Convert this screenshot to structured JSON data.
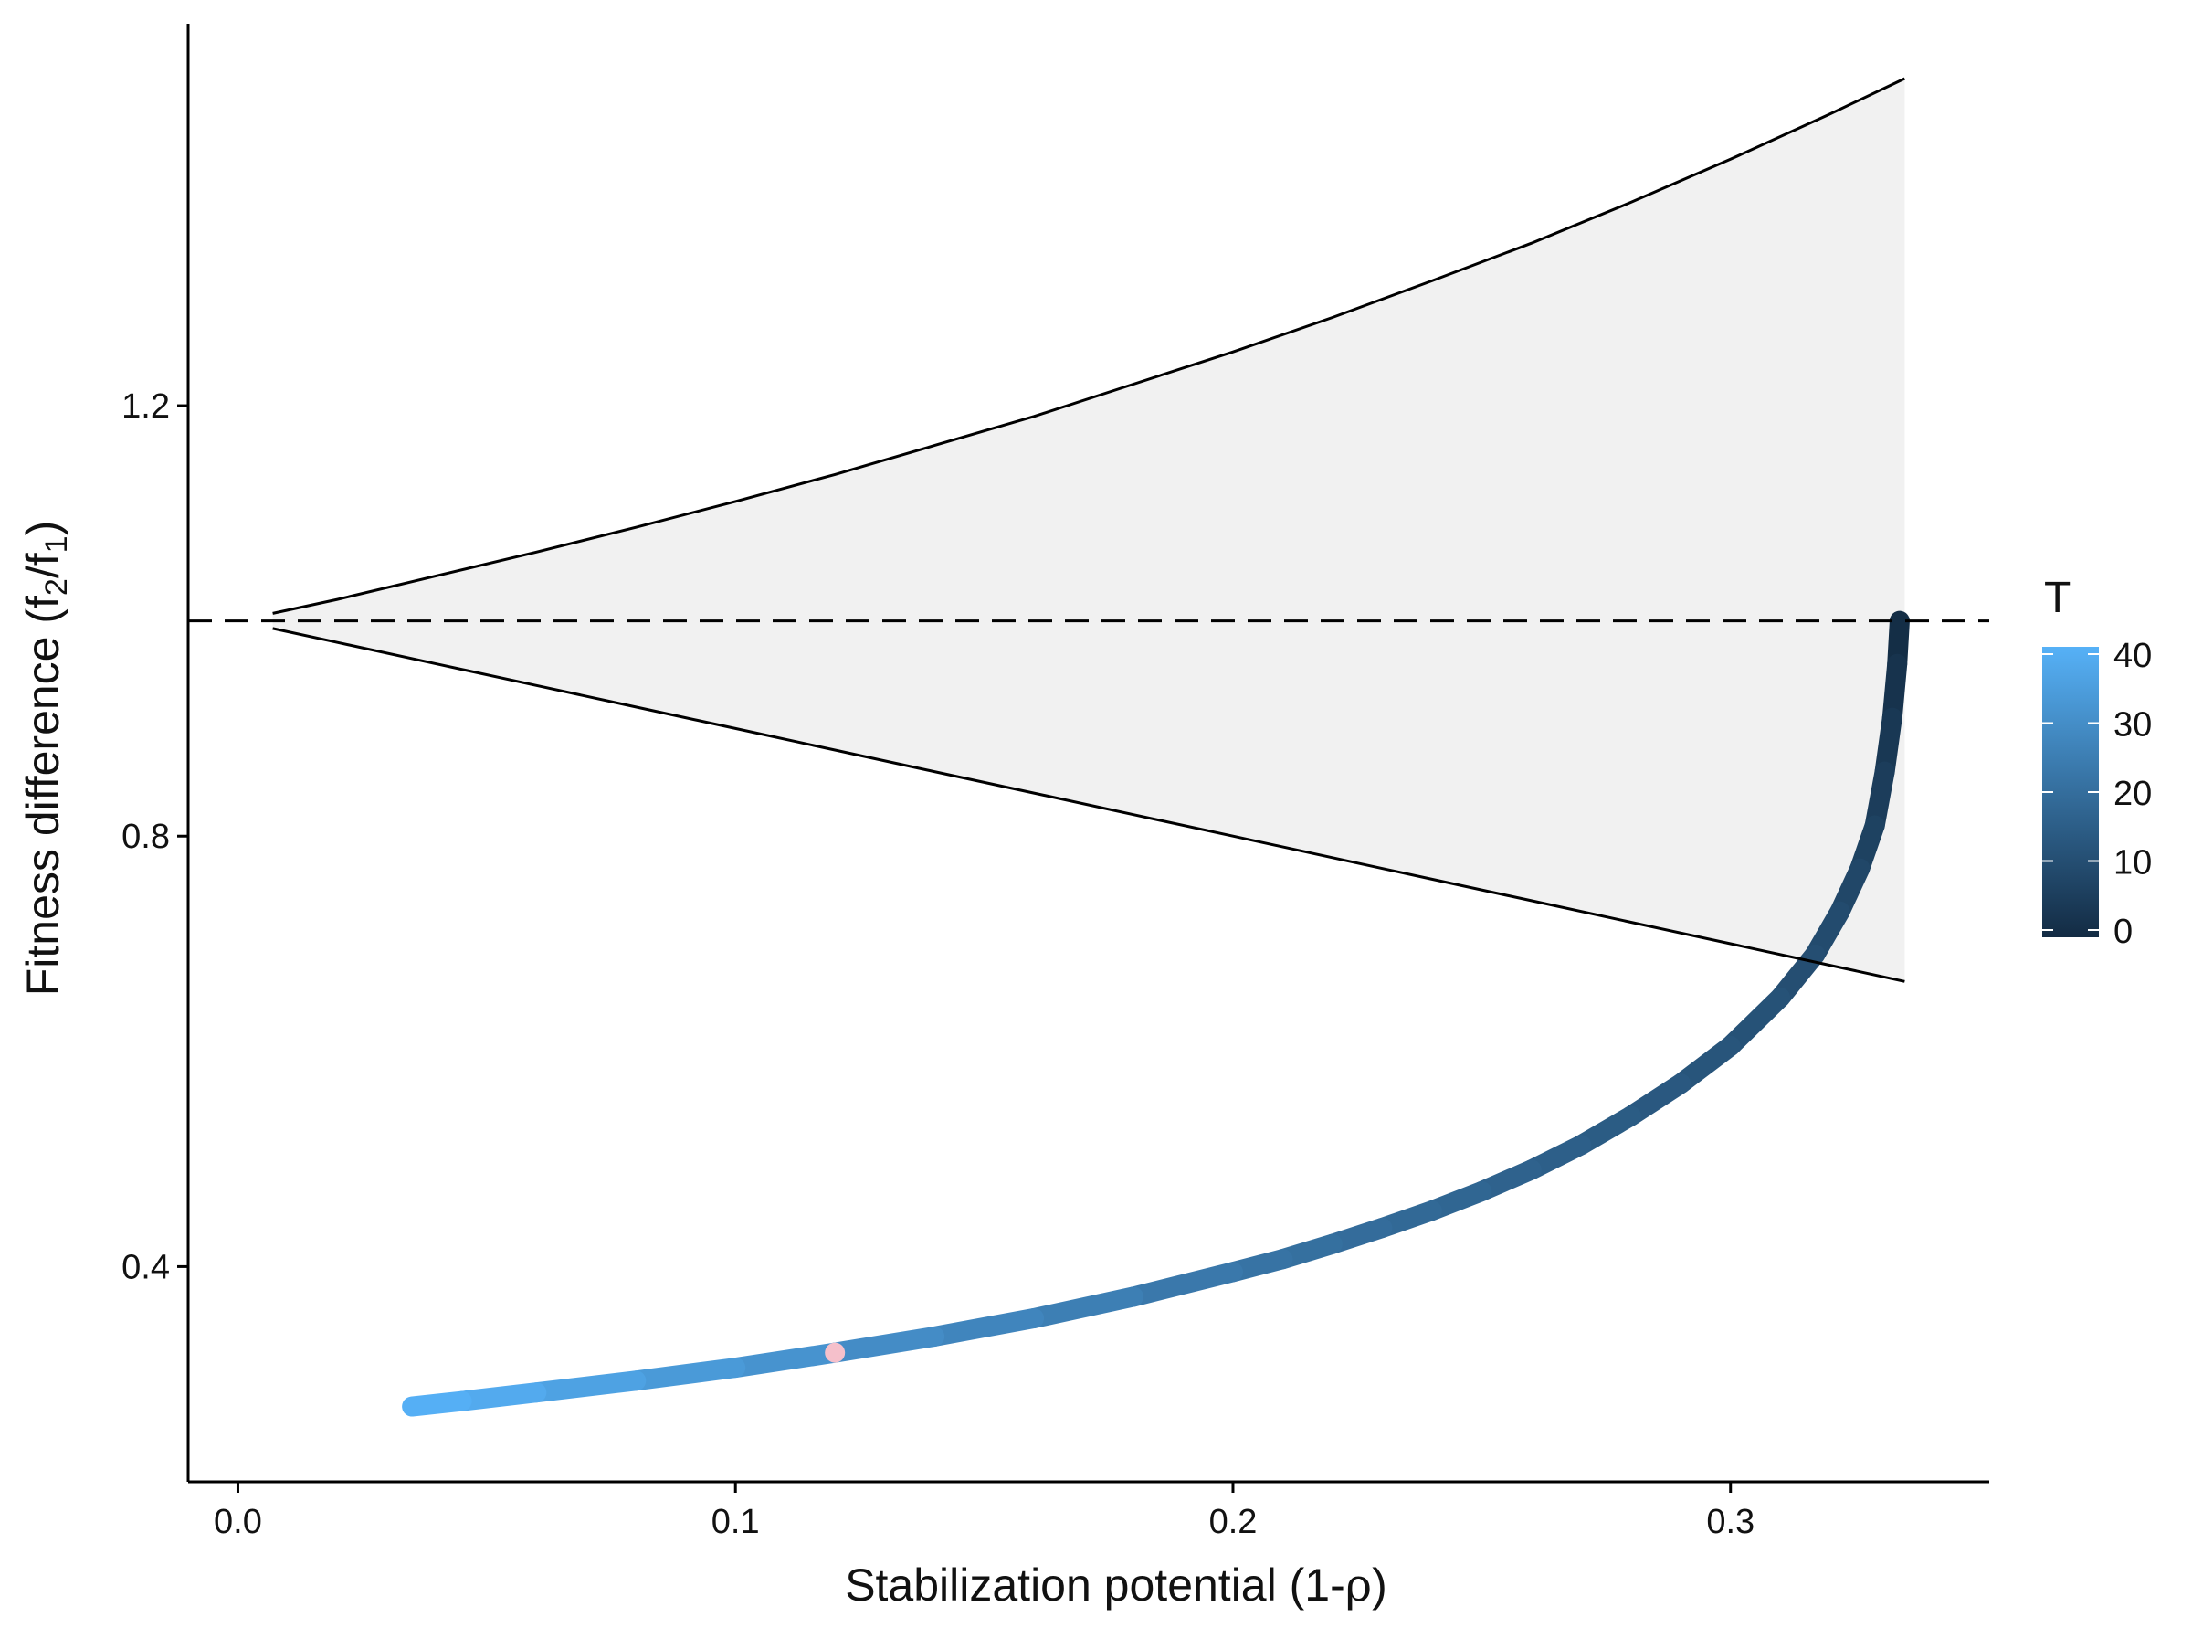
{
  "chart_data": {
    "type": "line",
    "xlabel": {
      "main": "Stabilization potential (1-",
      "symbol": "ρ",
      "close": ")"
    },
    "ylabel": {
      "main": "Fitness difference (f",
      "sub1": "2",
      "slash": "/f",
      "sub2": "1",
      "close": ")"
    },
    "xlim": [
      -0.01,
      0.352
    ],
    "ylim": [
      0.2,
      1.56
    ],
    "x_ticks": [
      {
        "value": 0.0,
        "label": "0.0"
      },
      {
        "value": 0.1,
        "label": "0.1"
      },
      {
        "value": 0.2,
        "label": "0.2"
      },
      {
        "value": 0.3,
        "label": "0.3"
      }
    ],
    "y_ticks": [
      {
        "value": 0.4,
        "label": "0.4"
      },
      {
        "value": 0.8,
        "label": "0.8"
      },
      {
        "value": 1.2,
        "label": "1.2"
      }
    ],
    "grid": false,
    "reference_line": {
      "y": 1.0,
      "style": "dashed"
    },
    "coexistence_region": {
      "x": [
        0.007,
        0.02,
        0.04,
        0.06,
        0.08,
        0.1,
        0.12,
        0.14,
        0.16,
        0.18,
        0.2,
        0.22,
        0.24,
        0.26,
        0.28,
        0.3,
        0.32,
        0.335
      ],
      "upper": [
        1.007,
        1.02,
        1.042,
        1.064,
        1.087,
        1.111,
        1.136,
        1.163,
        1.19,
        1.22,
        1.25,
        1.282,
        1.316,
        1.351,
        1.389,
        1.429,
        1.471,
        1.504
      ],
      "lower": [
        0.993,
        0.98,
        0.96,
        0.94,
        0.92,
        0.9,
        0.88,
        0.86,
        0.84,
        0.82,
        0.8,
        0.78,
        0.76,
        0.74,
        0.72,
        0.7,
        0.68,
        0.665
      ],
      "fill": "#f1f1f1"
    },
    "series": [
      {
        "x": [
          0.334,
          0.3335,
          0.3325,
          0.331,
          0.329,
          0.326,
          0.322,
          0.317,
          0.31,
          0.3,
          0.29,
          0.28,
          0.27,
          0.26,
          0.25,
          0.24,
          0.23,
          0.22,
          0.21,
          0.2,
          0.18,
          0.16,
          0.14,
          0.12,
          0.1,
          0.08,
          0.06,
          0.045,
          0.035
        ],
        "y": [
          1.0,
          0.96,
          0.91,
          0.86,
          0.81,
          0.77,
          0.73,
          0.69,
          0.65,
          0.605,
          0.57,
          0.54,
          0.513,
          0.49,
          0.47,
          0.452,
          0.436,
          0.421,
          0.407,
          0.395,
          0.372,
          0.352,
          0.335,
          0.32,
          0.306,
          0.294,
          0.283,
          0.275,
          0.27
        ],
        "T": [
          0,
          1.5,
          3,
          4.5,
          6,
          7.5,
          9,
          10,
          11,
          12,
          13,
          14,
          15,
          16,
          17,
          18,
          19,
          20,
          21,
          22,
          24,
          26,
          28,
          30,
          32,
          34,
          37,
          39,
          40
        ]
      }
    ],
    "highlight_point": {
      "x": 0.12,
      "y": 0.32,
      "color": "#f5c0cb"
    },
    "color_scale": {
      "title": "T",
      "min": 0,
      "max": 40,
      "low_color": "#132b43",
      "high_color": "#56b1f7",
      "ticks": [
        {
          "value": 40,
          "label": "40"
        },
        {
          "value": 30,
          "label": "30"
        },
        {
          "value": 20,
          "label": "20"
        },
        {
          "value": 10,
          "label": "10"
        },
        {
          "value": 0,
          "label": "0"
        }
      ]
    },
    "colors": {
      "axis": "#000000",
      "boundary": "#000000"
    }
  }
}
